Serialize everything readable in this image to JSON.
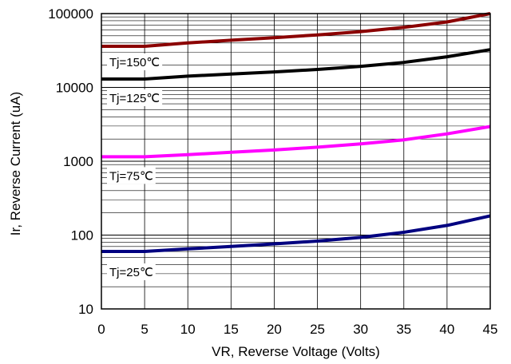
{
  "chart_data": {
    "type": "line",
    "title": "",
    "xlabel": "VR, Reverse Voltage (Volts)",
    "ylabel": "Ir, Reverse Current (uA)",
    "x_scale": "linear",
    "y_scale": "log",
    "xlim": [
      0,
      45
    ],
    "ylim": [
      10,
      100000
    ],
    "grid": true,
    "legend": "none",
    "x_ticks": [
      "0",
      "5",
      "10",
      "15",
      "20",
      "25",
      "30",
      "35",
      "40",
      "45"
    ],
    "y_ticks": [
      "10",
      "100",
      "1000",
      "10000",
      "100000"
    ],
    "series": [
      {
        "name": "Tj=150℃",
        "color": "#8b0000",
        "x": [
          0,
          5,
          10,
          15,
          20,
          25,
          30,
          35,
          40,
          45
        ],
        "y": [
          36000,
          36000,
          40000,
          43500,
          47000,
          51500,
          57000,
          65000,
          77000,
          100000
        ]
      },
      {
        "name": "Tj=125℃",
        "color": "#000000",
        "x": [
          0,
          5,
          10,
          15,
          20,
          25,
          30,
          35,
          40,
          45
        ],
        "y": [
          13000,
          13000,
          14200,
          15200,
          16200,
          17500,
          19300,
          21800,
          26000,
          32500
        ]
      },
      {
        "name": "Tj=75℃",
        "color": "#ff00ff",
        "x": [
          0,
          5,
          10,
          15,
          20,
          25,
          30,
          35,
          40,
          45
        ],
        "y": [
          1150,
          1150,
          1230,
          1320,
          1420,
          1550,
          1720,
          1950,
          2350,
          2950
        ]
      },
      {
        "name": "Tj=25℃",
        "color": "#000080",
        "x": [
          0,
          5,
          10,
          15,
          20,
          25,
          30,
          35,
          40,
          45
        ],
        "y": [
          60,
          60,
          65,
          70,
          76,
          83,
          93,
          109,
          135,
          182
        ]
      }
    ]
  }
}
